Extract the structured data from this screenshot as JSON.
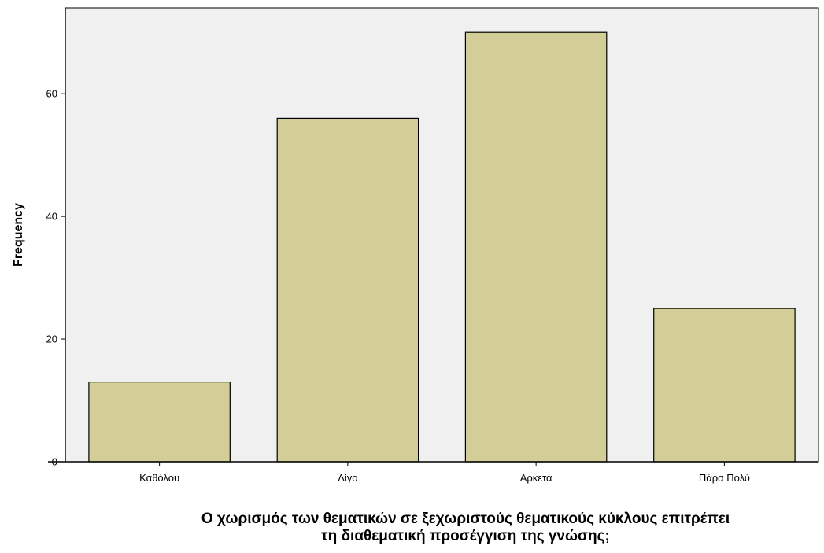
{
  "chart_data": {
    "type": "bar",
    "categories": [
      "Καθόλου",
      "Λίγο",
      "Αρκετά",
      "Πάρα Πολύ"
    ],
    "values": [
      13,
      56,
      70,
      25
    ],
    "xlabel_lines": [
      "Ο χωρισμός των θεματικών σε ξεχωριστούς θεματικούς κύκλους επιτρέπει",
      "τη διαθεματική προσέγγιση της γνώσης;"
    ],
    "ylabel": "Frequency",
    "ylim": [
      0,
      74
    ],
    "yticks": [
      0,
      20,
      40,
      60
    ],
    "grid": false,
    "legend": "none",
    "colors": {
      "plot_background": "#f0f0f0",
      "bar_fill": "#d3ce97",
      "bar_stroke": "#000000",
      "axis": "#000000"
    }
  }
}
